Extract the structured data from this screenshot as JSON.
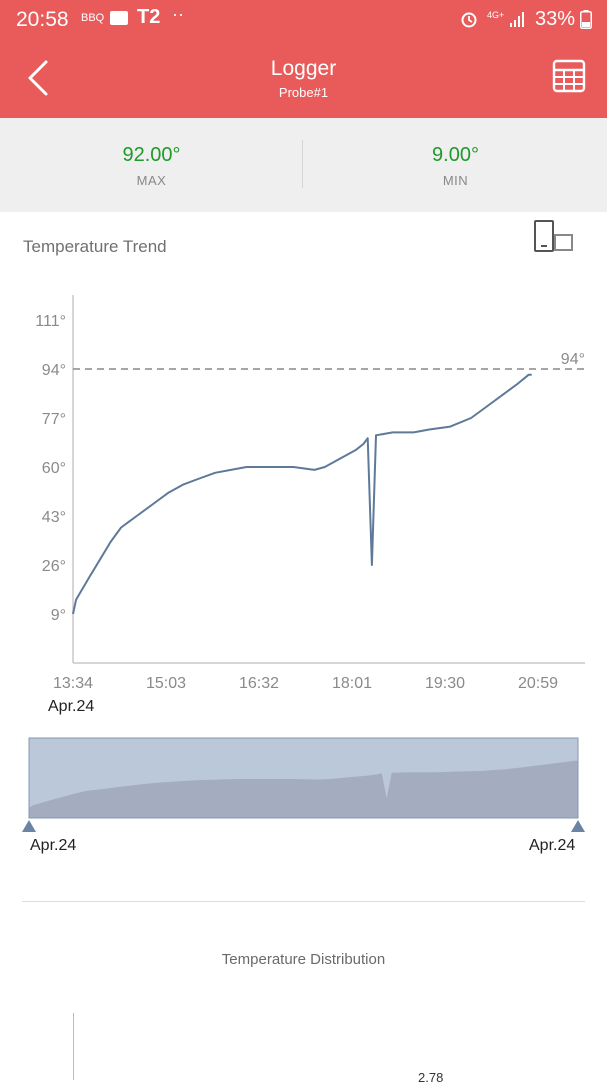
{
  "status_bar": {
    "time": "20:58",
    "app_icons": [
      "BBQ",
      "T2",
      "··"
    ],
    "network": "4G+",
    "battery": "33%"
  },
  "header": {
    "title": "Logger",
    "subtitle": "Probe#1",
    "back_icon": "chevron-left-icon",
    "table_icon": "table-icon"
  },
  "stats": {
    "max_value": "92.00°",
    "max_label": "MAX",
    "min_value": "9.00°",
    "min_label": "MIN"
  },
  "trend": {
    "title": "Temperature Trend",
    "rotate_icon": "rotate-screen-icon",
    "start_date": "Apr.24"
  },
  "navigator": {
    "start_date": "Apr.24",
    "end_date": "Apr.24"
  },
  "distribution": {
    "title": "Temperature Distribution",
    "visible_value": "2.78"
  },
  "chart_data": {
    "type": "line",
    "ylabel": "",
    "xlabel": "",
    "y_ticks": [
      "111°",
      "94°",
      "77°",
      "60°",
      "43°",
      "26°",
      "9°"
    ],
    "x_ticks": [
      "13:34",
      "15:03",
      "16:32",
      "18:01",
      "19:30",
      "20:59"
    ],
    "ylim": [
      0,
      122
    ],
    "reference_line": {
      "value": 94,
      "label": "94°"
    },
    "series": [
      {
        "points": [
          [
            "13:34",
            9
          ],
          [
            "13:37",
            14
          ],
          [
            "13:50",
            22
          ],
          [
            "14:00",
            28
          ],
          [
            "14:10",
            34
          ],
          [
            "14:20",
            39
          ],
          [
            "14:35",
            43
          ],
          [
            "14:50",
            47
          ],
          [
            "15:05",
            51
          ],
          [
            "15:20",
            54
          ],
          [
            "15:35",
            56
          ],
          [
            "15:50",
            58
          ],
          [
            "16:05",
            59
          ],
          [
            "16:20",
            60
          ],
          [
            "16:40",
            60
          ],
          [
            "17:05",
            60
          ],
          [
            "17:25",
            59
          ],
          [
            "17:35",
            60
          ],
          [
            "17:50",
            63
          ],
          [
            "18:05",
            66
          ],
          [
            "18:12",
            68
          ],
          [
            "18:16",
            70
          ],
          [
            "18:20",
            26
          ],
          [
            "18:24",
            71
          ],
          [
            "18:40",
            72
          ],
          [
            "19:00",
            72
          ],
          [
            "19:15",
            73
          ],
          [
            "19:35",
            74
          ],
          [
            "19:55",
            77
          ],
          [
            "20:10",
            81
          ],
          [
            "20:25",
            85
          ],
          [
            "20:40",
            89
          ],
          [
            "20:50",
            92
          ],
          [
            "20:53",
            92
          ]
        ]
      }
    ]
  }
}
